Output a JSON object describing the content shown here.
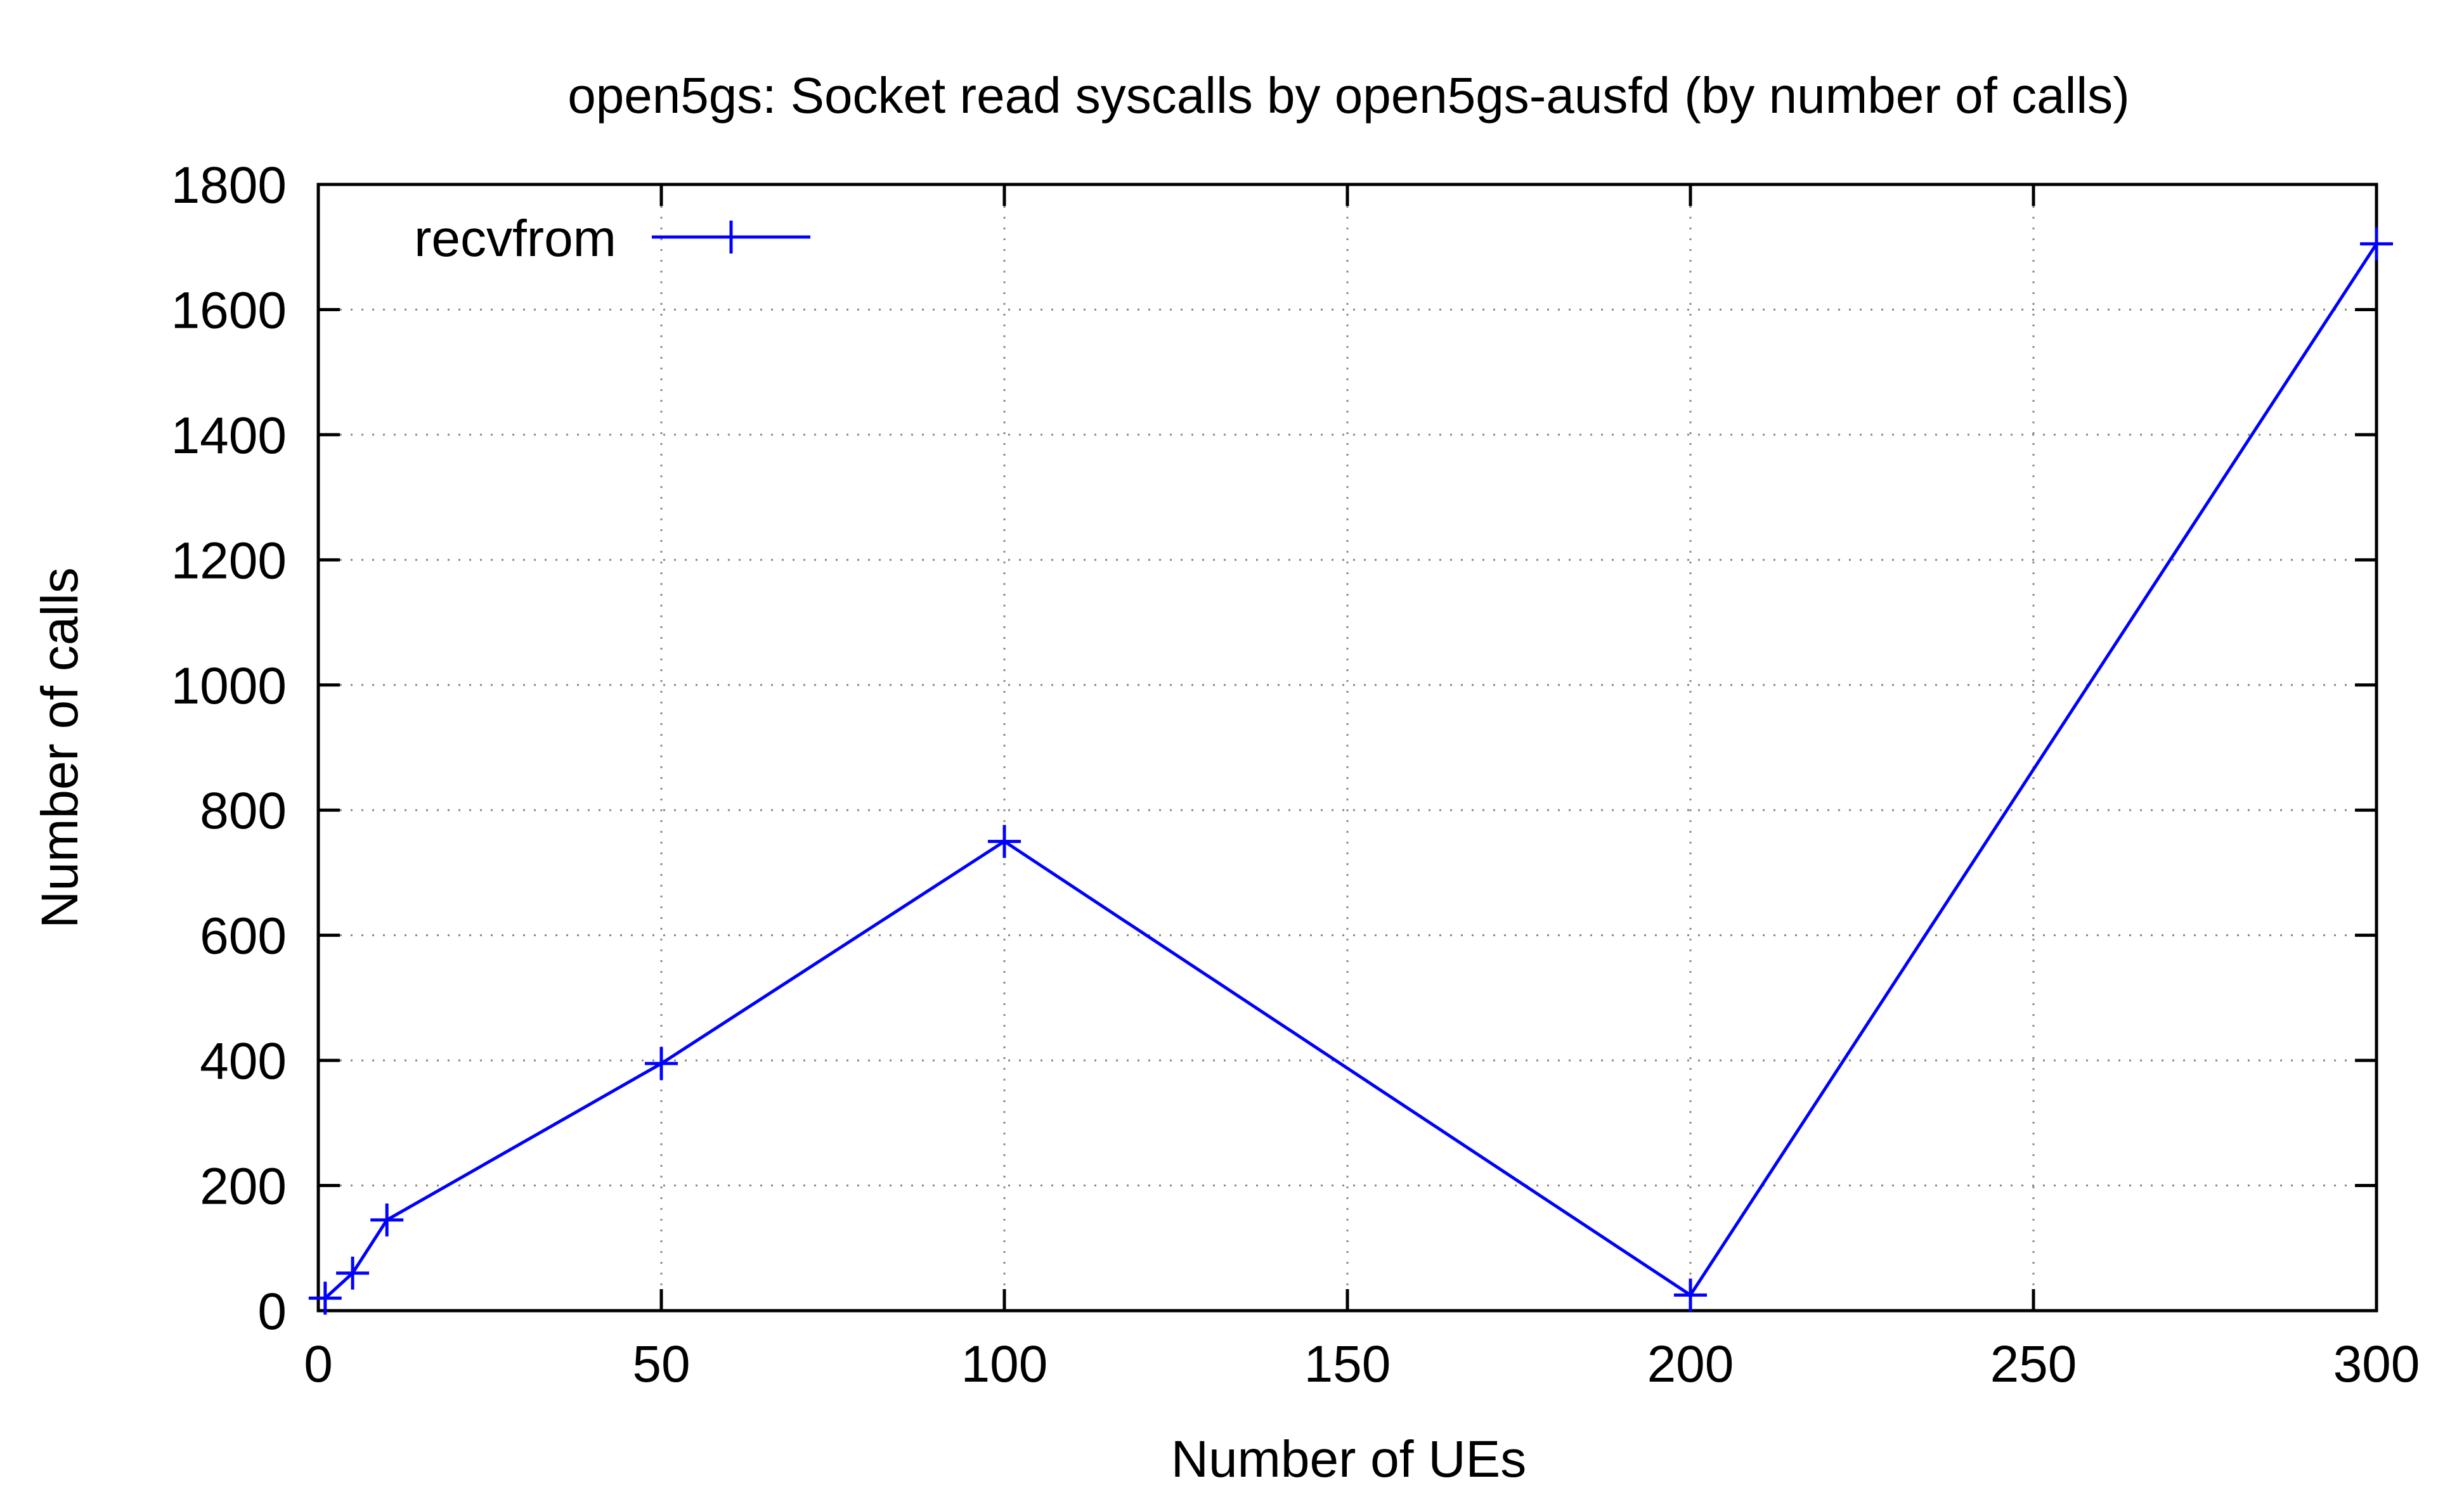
{
  "chart_data": {
    "type": "line",
    "title": "open5gs: Socket read syscalls by open5gs-ausfd (by number of calls)",
    "xlabel": "Number of UEs",
    "ylabel": "Number of calls",
    "xlim": [
      0,
      300
    ],
    "ylim": [
      0,
      1800
    ],
    "xticks": [
      0,
      50,
      100,
      150,
      200,
      250,
      300
    ],
    "yticks": [
      0,
      200,
      400,
      600,
      800,
      1000,
      1200,
      1400,
      1600,
      1800
    ],
    "grid": true,
    "legend_position": "top-left",
    "series": [
      {
        "name": "recvfrom",
        "color": "#0000ff",
        "marker": "plus",
        "x": [
          1,
          5,
          10,
          50,
          100,
          200,
          300
        ],
        "y": [
          20,
          60,
          145,
          395,
          750,
          25,
          1705
        ]
      }
    ]
  }
}
